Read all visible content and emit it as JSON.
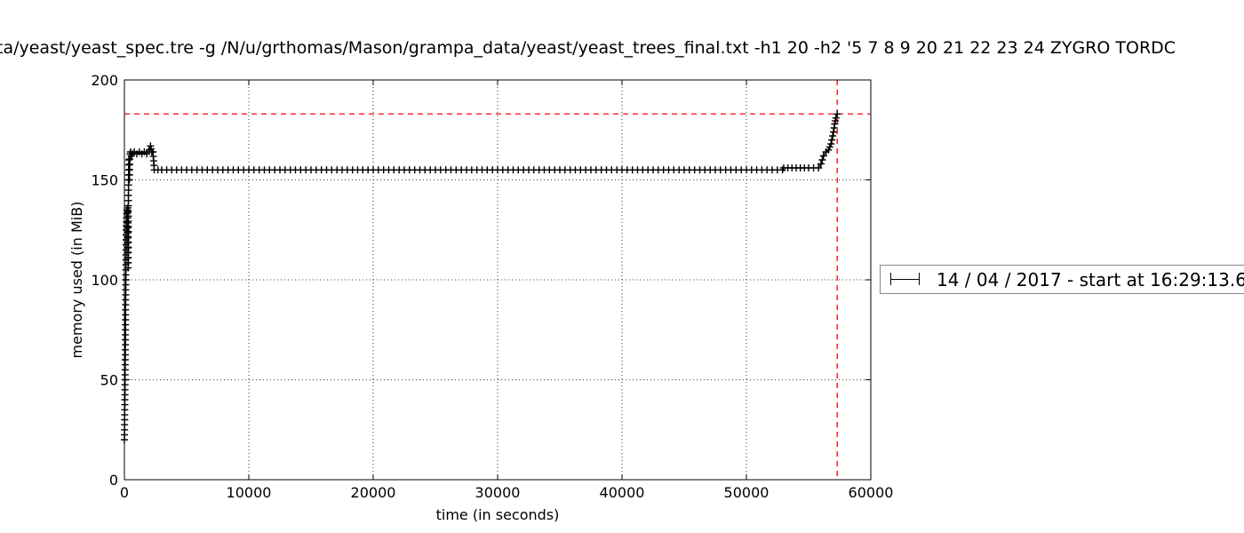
{
  "chart_data": {
    "type": "line",
    "title": "ta/yeast/yeast_spec.tre -g /N/u/grthomas/Mason/grampa_data/yeast/yeast_trees_final.txt -h1 20 -h2 '5 7 8 9 20 21 22 23 24 ZYGRO TORDC",
    "xlabel": "time (in seconds)",
    "ylabel": "memory used (in MiB)",
    "xlim": [
      0,
      60000
    ],
    "ylim": [
      0,
      200
    ],
    "xticks": [
      0,
      10000,
      20000,
      30000,
      40000,
      50000,
      60000
    ],
    "yticks": [
      0,
      50,
      100,
      150,
      200
    ],
    "xtick_labels": [
      "0",
      "10000",
      "20000",
      "30000",
      "40000",
      "50000",
      "60000"
    ],
    "ytick_labels": [
      "0",
      "50",
      "100",
      "150",
      "200"
    ],
    "grid": true,
    "legend_position": "right",
    "series": [
      {
        "name": "14 / 04 / 2017 - start at 16:29:13.6",
        "color": "#000000",
        "marker": "+",
        "x": [
          0,
          30,
          60,
          90,
          120,
          150,
          180,
          210,
          240,
          270,
          300,
          330,
          360,
          400,
          450,
          500,
          550,
          650,
          800,
          1000,
          1200,
          1400,
          1600,
          1800,
          2000,
          2100,
          2200,
          2300,
          2400,
          3000,
          5000,
          10000,
          15000,
          20000,
          25000,
          30000,
          35000,
          40000,
          45000,
          50000,
          52900,
          53000,
          54000,
          55000,
          55800,
          56000,
          56200,
          56400,
          56600,
          56800,
          57000,
          57100,
          57200,
          57300
        ],
        "y": [
          20,
          35,
          55,
          80,
          105,
          125,
          133,
          135,
          134,
          136,
          106,
          150,
          160,
          150,
          163,
          164,
          162,
          163,
          164,
          163,
          164,
          163,
          164,
          163,
          165,
          167,
          164,
          164,
          155,
          155,
          155,
          155,
          155,
          155,
          155,
          155,
          155,
          155,
          155,
          155,
          155,
          156,
          156,
          156,
          156,
          158,
          162,
          164,
          165,
          168,
          174,
          178,
          181,
          183
        ]
      }
    ],
    "reference_lines": [
      {
        "orientation": "horizontal",
        "value": 183,
        "color": "#ff0000",
        "style": "dashed"
      },
      {
        "orientation": "vertical",
        "value": 57300,
        "color": "#ff0000",
        "style": "dashed"
      }
    ]
  }
}
